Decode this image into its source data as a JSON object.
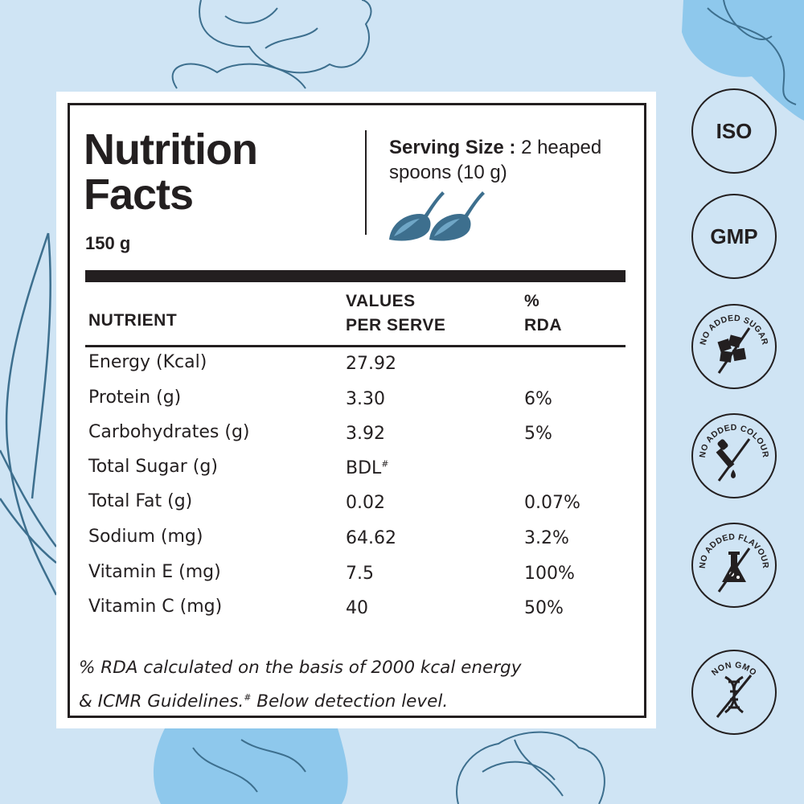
{
  "title": "Nutrition Facts",
  "net_weight": "150 g",
  "serving": {
    "label": "Serving Size :",
    "value": "2 heaped spoons (10 g)",
    "icon": "spoon-icon"
  },
  "table": {
    "headers": {
      "nutrient": "NUTRIENT",
      "values_line1": "VALUES",
      "values_line2": "PER SERVE",
      "rda_line1": "%",
      "rda_line2": "RDA"
    },
    "rows": [
      {
        "nutrient": "Energy (Kcal)",
        "value": "27.92",
        "rda": ""
      },
      {
        "nutrient": "Protein (g)",
        "value": "3.30",
        "rda": "6%"
      },
      {
        "nutrient": "Carbohydrates (g)",
        "value": "3.92",
        "rda": "5%"
      },
      {
        "nutrient": "Total Sugar (g)",
        "value": "BDL",
        "value_mark": "#",
        "rda": ""
      },
      {
        "nutrient": "Total Fat (g)",
        "value": "0.02",
        "rda": "0.07%"
      },
      {
        "nutrient": "Sodium (mg)",
        "value": "64.62",
        "rda": "3.2%"
      },
      {
        "nutrient": "Vitamin E (mg)",
        "value": "7.5",
        "rda": "100%"
      },
      {
        "nutrient": "Vitamin C (mg)",
        "value": "40",
        "rda": "50%"
      }
    ]
  },
  "footnote": {
    "line1": "% RDA calculated on the basis of 2000 kcal energy",
    "line2_a": "& ICMR Guidelines.",
    "line2_mark": "#",
    "line2_b": " Below detection level."
  },
  "badges": {
    "iso": "ISO",
    "gmp": "GMP",
    "no_sugar": {
      "text": "NO ADDED SUGAR",
      "icon": "sugar-cubes-icon"
    },
    "no_colour": {
      "text": "NO ADDED COLOUR",
      "icon": "dropper-icon"
    },
    "no_flavour": {
      "text": "NO ADDED FLAVOUR",
      "icon": "flask-icon"
    },
    "non_gmo": {
      "text": "NON GMO",
      "icon": "dna-icon"
    }
  },
  "colors": {
    "background": "#cfe4f4",
    "accent_blue": "#7fbfe6",
    "line_blue": "#3d6f8e",
    "ink": "#231f20"
  }
}
